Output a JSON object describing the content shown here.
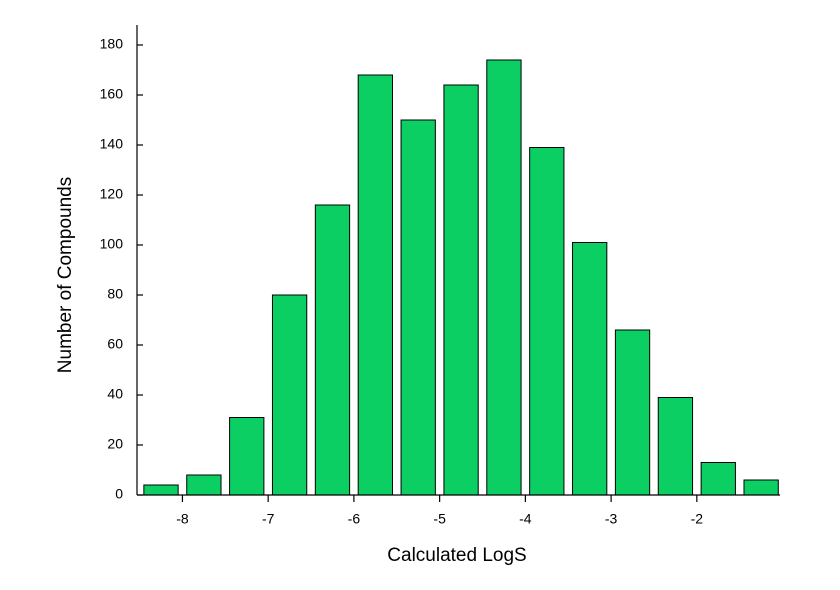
{
  "chart_data": {
    "type": "histogram",
    "x_label": "Calculated LogS",
    "y_label": "Number of Compounds",
    "bins": [
      -8.5,
      -8,
      -7.5,
      -7,
      -6.5,
      -6,
      -5.5,
      -5,
      -4.5,
      -4,
      -3.5,
      -3,
      -2.5,
      -2,
      -1.5,
      -1
    ],
    "values": [
      4,
      8,
      31,
      80,
      116,
      168,
      150,
      164,
      174,
      139,
      101,
      66,
      39,
      13,
      6
    ],
    "color": "#0ccf63",
    "xlim": [
      -8.53,
      -1.03
    ],
    "ylim": [
      0,
      188
    ],
    "xticks": [
      -8,
      -7,
      -6,
      -5,
      -4,
      -3,
      -2
    ],
    "yticks": [
      0,
      20,
      40,
      60,
      80,
      100,
      120,
      140,
      160,
      180
    ],
    "grid": false
  }
}
